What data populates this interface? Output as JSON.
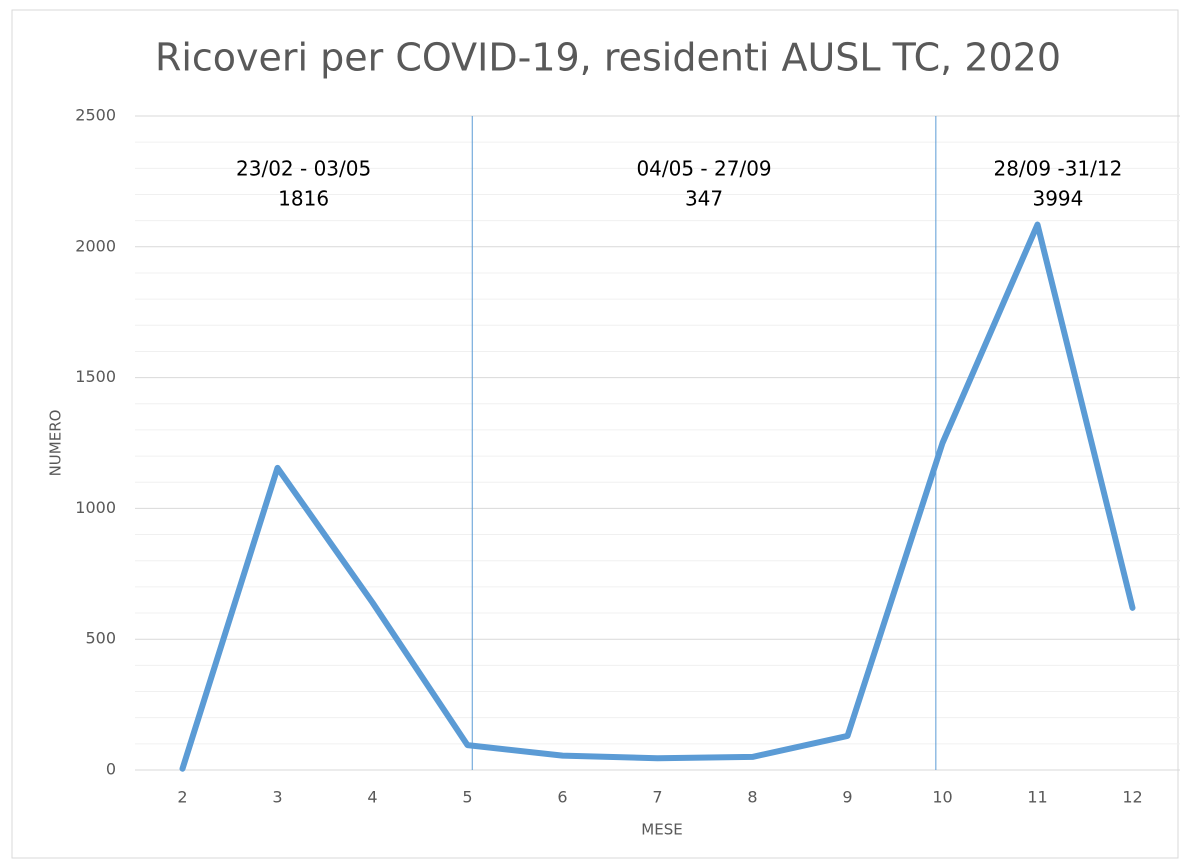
{
  "chart_data": {
    "type": "line",
    "title": "Ricoveri per COVID-19, residenti AUSL TC, 2020",
    "xlabel": "MESE",
    "ylabel": "NUMERO",
    "x": [
      2,
      3,
      4,
      5,
      6,
      7,
      8,
      9,
      10,
      11,
      12
    ],
    "series": [
      {
        "name": "Ricoveri",
        "color": "#5b9bd5",
        "values": [
          5,
          1155,
          640,
          95,
          55,
          45,
          50,
          130,
          1250,
          2085,
          620
        ]
      }
    ],
    "xlim": [
      1.5,
      12.5
    ],
    "xticks": [
      2,
      3,
      4,
      5,
      6,
      7,
      8,
      9,
      10,
      11,
      12
    ],
    "ylim": [
      0,
      2500
    ],
    "yticks": [
      0,
      500,
      1000,
      1500,
      2000,
      2500
    ],
    "yminor_ticks": [
      100,
      200,
      300,
      400,
      600,
      700,
      800,
      900,
      1100,
      1200,
      1300,
      1400,
      1600,
      1700,
      1800,
      1900,
      2100,
      2200,
      2300,
      2400
    ],
    "grid": true,
    "vlines": [
      5.05,
      9.93
    ],
    "periods": [
      {
        "label": "23/02 - 03/05",
        "total": 1816
      },
      {
        "label": "04/05 - 27/09",
        "total": 347
      },
      {
        "label": "28/09 -31/12",
        "total": 3994
      }
    ]
  }
}
